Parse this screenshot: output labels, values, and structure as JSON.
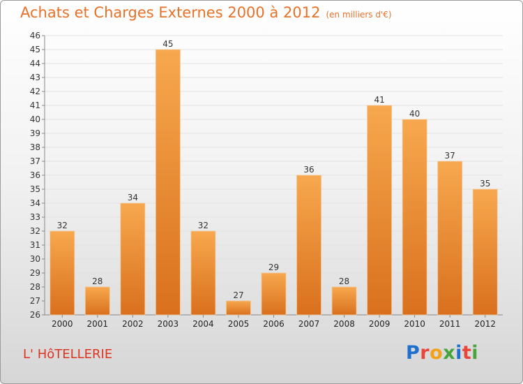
{
  "title": "Achats et Charges Externes 2000 à 2012",
  "unit_note": "(en milliers d'€)",
  "place_label": "L' HôTELLERIE",
  "logo": {
    "letters": [
      "P",
      "r",
      "o",
      "x",
      "i",
      "t",
      "i"
    ]
  },
  "colors": {
    "title": "#e8712a",
    "place": "#e0331f",
    "bar_top": "#f7a84e",
    "bar_bottom": "#d9701e",
    "logo": [
      "#1f6fcf",
      "#e8463a",
      "#f2a118",
      "#47a43a",
      "#1f6fcf",
      "#e8463a",
      "#47a43a"
    ]
  },
  "chart_data": {
    "type": "bar",
    "categories": [
      "2000",
      "2001",
      "2002",
      "2003",
      "2004",
      "2005",
      "2006",
      "2007",
      "2008",
      "2009",
      "2010",
      "2011",
      "2012"
    ],
    "values": [
      32,
      28,
      34,
      45,
      32,
      27,
      29,
      36,
      28,
      41,
      40,
      37,
      35
    ],
    "ylim": [
      26,
      46
    ],
    "yticks": [
      26,
      27,
      28,
      29,
      30,
      31,
      32,
      33,
      34,
      35,
      36,
      37,
      38,
      39,
      40,
      41,
      42,
      43,
      44,
      45,
      46
    ],
    "grid": true
  }
}
